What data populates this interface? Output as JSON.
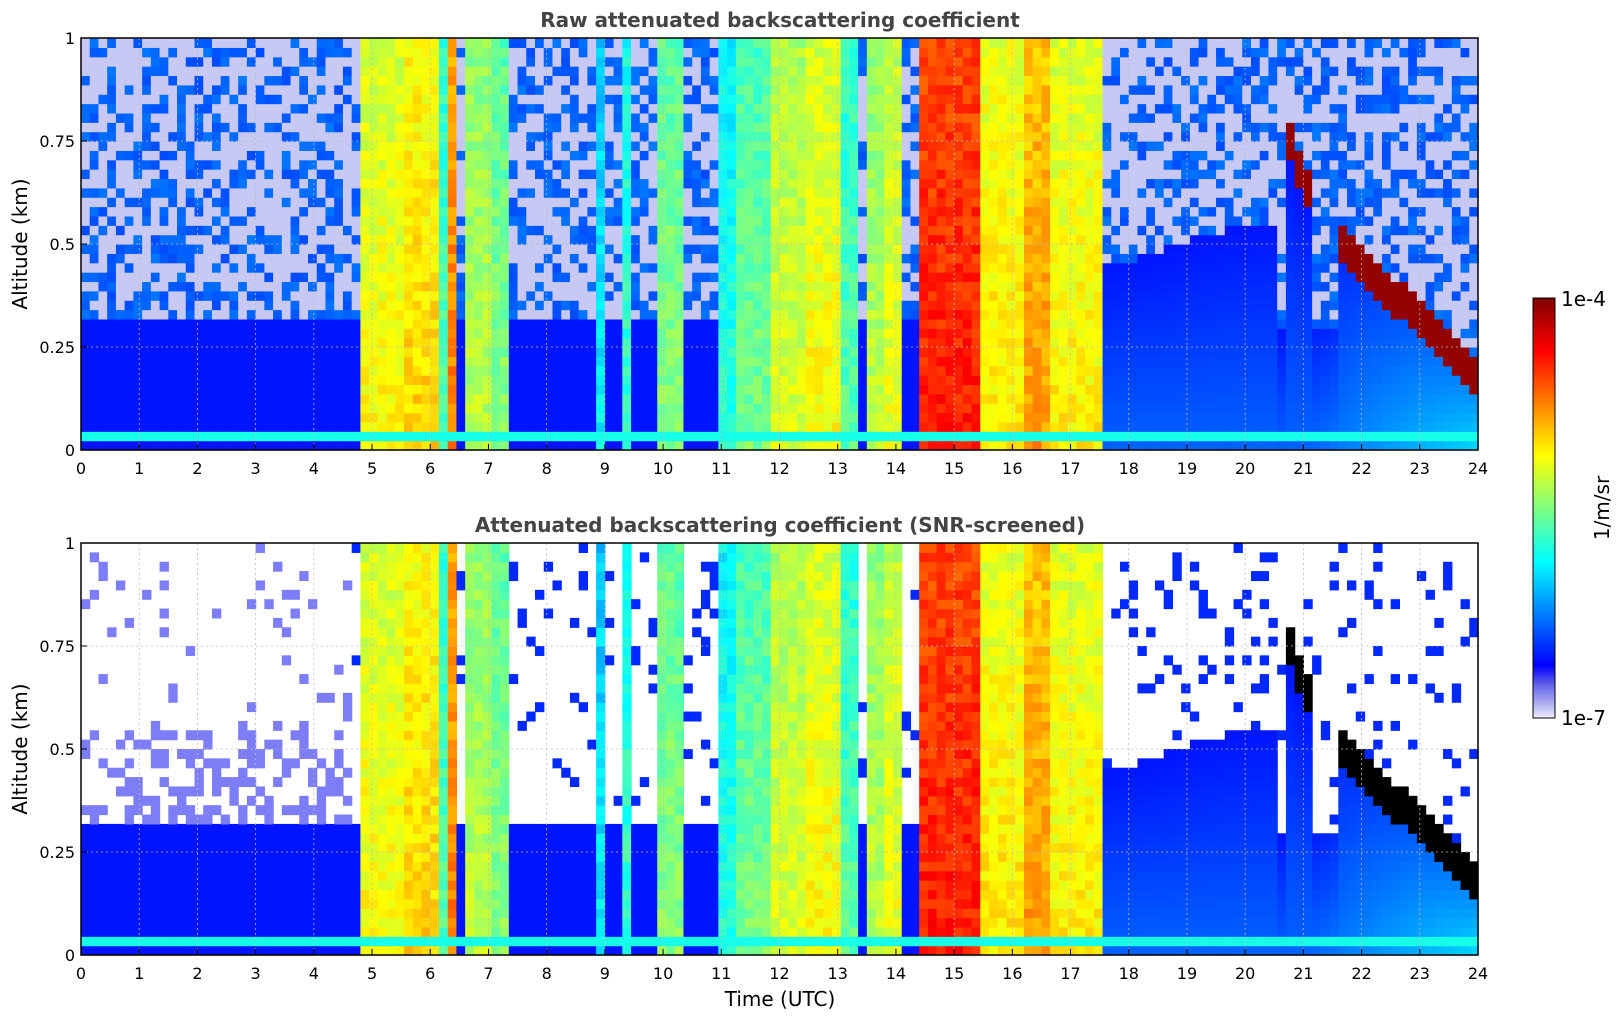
{
  "chart_data": [
    {
      "type": "heatmap",
      "title": "Raw attenuated backscattering coefficient",
      "xlabel": "",
      "ylabel": "Altitude (km)",
      "xlim": [
        0,
        24
      ],
      "ylim": [
        0,
        1
      ],
      "xticks": [
        "0",
        "1",
        "2",
        "3",
        "4",
        "5",
        "6",
        "7",
        "8",
        "9",
        "10",
        "11",
        "12",
        "13",
        "14",
        "15",
        "16",
        "17",
        "18",
        "19",
        "20",
        "21",
        "22",
        "23",
        "24"
      ],
      "yticks": [
        "0",
        "0.25",
        "0.5",
        "0.75",
        "1"
      ],
      "grid": true,
      "screened": false
    },
    {
      "type": "heatmap",
      "title": "Attenuated backscattering coefficient (SNR-screened)",
      "xlabel": "Time (UTC)",
      "ylabel": "Altitude (km)",
      "xlim": [
        0,
        24
      ],
      "ylim": [
        0,
        1
      ],
      "xticks": [
        "0",
        "1",
        "2",
        "3",
        "4",
        "5",
        "6",
        "7",
        "8",
        "9",
        "10",
        "11",
        "12",
        "13",
        "14",
        "15",
        "16",
        "17",
        "18",
        "19",
        "20",
        "21",
        "22",
        "23",
        "24"
      ],
      "yticks": [
        "0",
        "0.25",
        "0.5",
        "0.75",
        "1"
      ],
      "grid": true,
      "screened": true
    }
  ],
  "colorbar": {
    "label": "1/m/sr",
    "max_label": "1e-4",
    "min_label": "1e-7",
    "scale": "log",
    "colormap": "jet",
    "range": [
      1e-07,
      0.0001
    ]
  },
  "colors": {
    "title": "#444444",
    "axis": "#000000",
    "grid": "#bbbbbb",
    "saturated": "#000000"
  }
}
